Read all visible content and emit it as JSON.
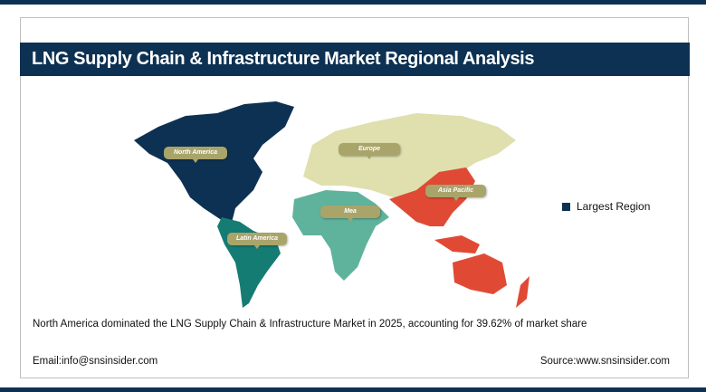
{
  "title": "LNG Supply Chain & Infrastructure Market Regional Analysis",
  "map": {
    "regions": [
      {
        "label": "North America",
        "color": "#0d3152",
        "largest": true
      },
      {
        "label": "Europe",
        "color": "#dfe0ae"
      },
      {
        "label": "Asia Pacific",
        "color": "#e04a35"
      },
      {
        "label": "Mea",
        "color": "#5fb39c"
      },
      {
        "label": "Latin America",
        "color": "#157c73"
      }
    ],
    "legend": {
      "label": "Largest Region",
      "color": "#0d3152"
    }
  },
  "caption": "North America dominated the LNG Supply Chain & Infrastructure Market in 2025, accounting for 39.62% of market share",
  "footer": {
    "email": "Email:info@snsinsider.com",
    "source": "Source:www.snsinsider.com"
  }
}
